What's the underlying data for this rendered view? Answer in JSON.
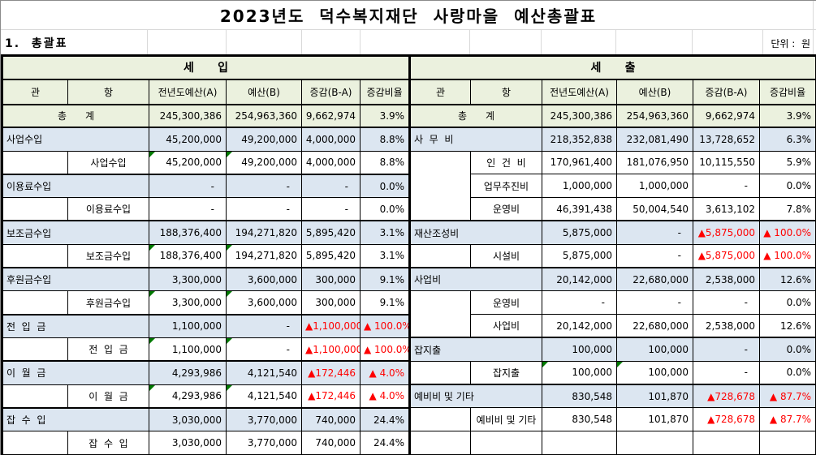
{
  "title": "2023년도  덕수복지재단  사랑마을  예산총괄표",
  "section_label": "1.  총괄표",
  "unit_label": "단위 :  원",
  "columns": [
    "관",
    "항",
    "전년도예산(A)",
    "예산(B)",
    "증감(B-A)",
    "증감비율"
  ],
  "colors": {
    "header_bg": "#EBF1DE",
    "gwan_row_bg": "#DCE6F1",
    "negative_text": "#FF0000",
    "note_marker": "#007A00",
    "border": "#000000"
  },
  "revenue": {
    "section_title": "세      입",
    "total": {
      "label": "총      계",
      "a": "245,300,386",
      "b": "254,963,360",
      "diff": "9,662,974",
      "rate": "3.9%"
    },
    "groups": [
      {
        "gwan": {
          "label": "사업수입",
          "a": "45,200,000",
          "b": "49,200,000",
          "diff": "4,000,000",
          "rate": "8.8%"
        },
        "hangs": [
          {
            "label": "사업수입",
            "a": "45,200,000",
            "b": "49,200,000",
            "diff": "4,000,000",
            "rate": "8.8%",
            "noteA": true,
            "noteB": true
          }
        ]
      },
      {
        "gwan": {
          "label": "이용료수입",
          "a": "-",
          "b": "-",
          "diff": "-",
          "rate": "0.0%"
        },
        "hangs": [
          {
            "label": "이용료수입",
            "a": "-",
            "b": "-",
            "diff": "-",
            "rate": "0.0%"
          }
        ]
      },
      {
        "gwan": {
          "label": "보조금수입",
          "a": "188,376,400",
          "b": "194,271,820",
          "diff": "5,895,420",
          "rate": "3.1%"
        },
        "hangs": [
          {
            "label": "보조금수입",
            "a": "188,376,400",
            "b": "194,271,820",
            "diff": "5,895,420",
            "rate": "3.1%",
            "noteA": true,
            "noteB": true
          }
        ]
      },
      {
        "gwan": {
          "label": "후원금수입",
          "a": "3,300,000",
          "b": "3,600,000",
          "diff": "300,000",
          "rate": "9.1%"
        },
        "hangs": [
          {
            "label": "후원금수입",
            "a": "3,300,000",
            "b": "3,600,000",
            "diff": "300,000",
            "rate": "9.1%",
            "noteA": true,
            "noteB": true
          }
        ]
      },
      {
        "gwan": {
          "label": "전  입  금",
          "a": "1,100,000",
          "b": "-",
          "diff": "▲1,100,000",
          "rate": "▲ 100.0%"
        },
        "hangs": [
          {
            "label": "전  입  금",
            "a": "1,100,000",
            "b": "-",
            "diff": "▲1,100,000",
            "rate": "▲ 100.0%",
            "noteA": true,
            "noteB": true
          }
        ]
      },
      {
        "gwan": {
          "label": "이  월  금",
          "a": "4,293,986",
          "b": "4,121,540",
          "diff": "▲172,446",
          "rate": "▲ 4.0%"
        },
        "hangs": [
          {
            "label": "이  월  금",
            "a": "4,293,986",
            "b": "4,121,540",
            "diff": "▲172,446",
            "rate": "▲ 4.0%",
            "noteA": true,
            "noteB": true
          }
        ]
      },
      {
        "gwan": {
          "label": "잡  수  입",
          "a": "3,030,000",
          "b": "3,770,000",
          "diff": "740,000",
          "rate": "24.4%"
        },
        "hangs": [
          {
            "label": "잡  수  입",
            "a": "3,030,000",
            "b": "3,770,000",
            "diff": "740,000",
            "rate": "24.4%"
          }
        ]
      }
    ],
    "trailing_empty_row": false
  },
  "expenditure": {
    "section_title": "세      출",
    "total": {
      "label": "총      계",
      "a": "245,300,386",
      "b": "254,963,360",
      "diff": "9,662,974",
      "rate": "3.9%"
    },
    "groups": [
      {
        "gwan": {
          "label": "사  무  비",
          "a": "218,352,838",
          "b": "232,081,490",
          "diff": "13,728,652",
          "rate": "6.3%"
        },
        "hangs": [
          {
            "label": "인  건  비",
            "a": "170,961,400",
            "b": "181,076,950",
            "diff": "10,115,550",
            "rate": "5.9%"
          },
          {
            "label": "업무추진비",
            "a": "1,000,000",
            "b": "1,000,000",
            "diff": "-",
            "rate": "0.0%"
          },
          {
            "label": "운영비",
            "a": "46,391,438",
            "b": "50,004,540",
            "diff": "3,613,102",
            "rate": "7.8%"
          }
        ]
      },
      {
        "gwan": {
          "label": "재산조성비",
          "a": "5,875,000",
          "b": "-",
          "diff": "▲5,875,000",
          "rate": "▲ 100.0%"
        },
        "hangs": [
          {
            "label": "시설비",
            "a": "5,875,000",
            "b": "-",
            "diff": "▲5,875,000",
            "rate": "▲ 100.0%"
          }
        ]
      },
      {
        "gwan": {
          "label": "사업비",
          "a": "20,142,000",
          "b": "22,680,000",
          "diff": "2,538,000",
          "rate": "12.6%"
        },
        "hangs": [
          {
            "label": "운영비",
            "a": "-",
            "b": "-",
            "diff": "-",
            "rate": "0.0%"
          },
          {
            "label": "사업비",
            "a": "20,142,000",
            "b": "22,680,000",
            "diff": "2,538,000",
            "rate": "12.6%"
          }
        ]
      },
      {
        "gwan": {
          "label": "잡지출",
          "a": "100,000",
          "b": "100,000",
          "diff": "-",
          "rate": "0.0%"
        },
        "hangs": [
          {
            "label": "잡지출",
            "a": "100,000",
            "b": "100,000",
            "diff": "-",
            "rate": "0.0%",
            "noteA": true,
            "noteB": true
          }
        ]
      },
      {
        "gwan": {
          "label": "예비비 및 기타",
          "a": "830,548",
          "b": "101,870",
          "diff": "▲728,678",
          "rate": "▲ 87.7%"
        },
        "hangs": [
          {
            "label": "예비비 및 기타",
            "a": "830,548",
            "b": "101,870",
            "diff": "▲728,678",
            "rate": "▲ 87.7%"
          }
        ]
      }
    ],
    "trailing_empty_row": true
  }
}
